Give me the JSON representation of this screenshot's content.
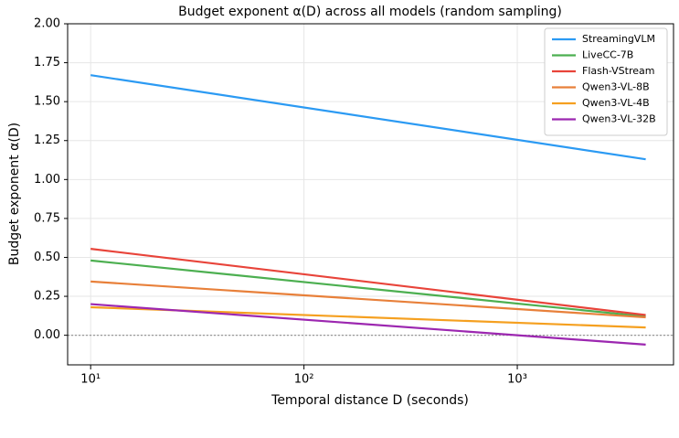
{
  "chart_data": {
    "type": "line",
    "title": "Budget exponent α(D) across all models (random sampling)",
    "x_label": "Temporal distance D (seconds)",
    "y_label": "Budget exponent α(D)",
    "x": [
      10,
      4000
    ],
    "xscale": "log",
    "xlim": [
      7.8,
      5400
    ],
    "ylim": [
      -0.19,
      2.0
    ],
    "xticks": [
      {
        "value": 10,
        "label": "10¹"
      },
      {
        "value": 100,
        "label": "10²"
      },
      {
        "value": 1000,
        "label": "10³"
      }
    ],
    "yticks": [
      {
        "value": 0,
        "label": "0.00"
      },
      {
        "value": 0.25,
        "label": "0.25"
      },
      {
        "value": 0.5,
        "label": "0.50"
      },
      {
        "value": 0.75,
        "label": "0.75"
      },
      {
        "value": 1,
        "label": "1.00"
      },
      {
        "value": 1.25,
        "label": "1.25"
      },
      {
        "value": 1.5,
        "label": "1.50"
      },
      {
        "value": 1.75,
        "label": "1.75"
      },
      {
        "value": 2,
        "label": "2.00"
      }
    ],
    "grid": true,
    "reference_line": 0,
    "legend": "upper right",
    "series": [
      {
        "name": "StreamingVLM",
        "color": "#2b9af3",
        "values": [
          1.67,
          1.13
        ]
      },
      {
        "name": "LiveCC-7B",
        "color": "#4caf50",
        "values": [
          0.48,
          0.12
        ]
      },
      {
        "name": "Flash-VStream",
        "color": "#e8443a",
        "values": [
          0.555,
          0.13
        ]
      },
      {
        "name": "Qwen3-VL-8B",
        "color": "#e8803a",
        "values": [
          0.345,
          0.115
        ]
      },
      {
        "name": "Qwen3-VL-4B",
        "color": "#f5a020",
        "values": [
          0.18,
          0.05
        ]
      },
      {
        "name": "Qwen3-VL-32B",
        "color": "#9c27b0",
        "values": [
          0.2,
          -0.06
        ]
      }
    ]
  }
}
